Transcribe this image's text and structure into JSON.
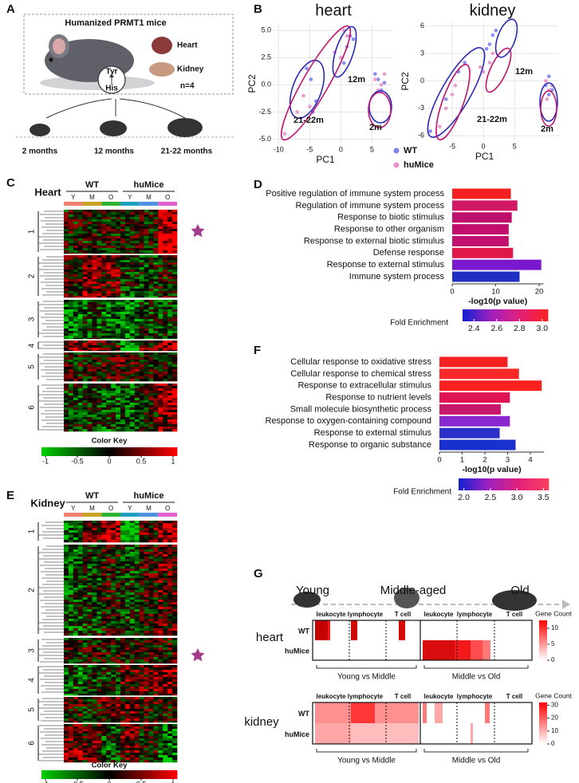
{
  "panel_labels": [
    "A",
    "B",
    "C",
    "D",
    "E",
    "F",
    "G"
  ],
  "model": {
    "title": "Humanized PRMT1 mice",
    "organs": [
      "Heart",
      "Kidney"
    ],
    "residues": [
      "Tyr",
      "His"
    ],
    "n": "n=4",
    "ages": [
      "2 months",
      "12 months",
      "21-22 months"
    ]
  },
  "chart_data": [
    {
      "type": "scatter",
      "title": "heart",
      "xlabel": "PC1",
      "ylabel": "PC2",
      "grid": true,
      "xlim": [
        -10.8,
        8.4
      ],
      "xticks": [
        -10,
        -5,
        0,
        5
      ],
      "ylim": [
        -5.4,
        5.6
      ],
      "yticks": [
        {
          "value": -5,
          "label": "-5.0"
        },
        -2.5,
        {
          "value": 0,
          "label": "0.0"
        },
        2.5,
        {
          "value": 5,
          "label": "5.0"
        }
      ],
      "annotations": [
        "12m",
        "21-22m",
        "2m"
      ],
      "series": [
        {
          "name": "WT",
          "color": "#7b83eb",
          "x": [
            -5.5,
            -4.8,
            -4,
            -4.5,
            0.5,
            1,
            1.5,
            2,
            5.5,
            6,
            6.5,
            7
          ],
          "values": [
            1.5,
            0.5,
            -1.5,
            -2.5,
            2,
            3.5,
            4.5,
            4.2,
            1,
            0.5,
            -0.5,
            0.2
          ]
        },
        {
          "name": "huMice",
          "color": "#e891c9",
          "x": [
            -9,
            -7,
            -6,
            -5,
            -1,
            0,
            1,
            0.5,
            5.5,
            6,
            6.5,
            7
          ],
          "values": [
            -4.5,
            -2.5,
            -1,
            -2,
            3,
            2.5,
            4.5,
            5,
            0.5,
            -0.5,
            0,
            1
          ]
        }
      ]
    },
    {
      "type": "scatter",
      "title": "kidney",
      "xlabel": "PC1",
      "ylabel": "PC2",
      "grid": true,
      "legend": "bottom-left",
      "xlim": [
        -9.1,
        12
      ],
      "xticks": [
        -5,
        0,
        5
      ],
      "ylim": [
        -6.5,
        6.4
      ],
      "yticks": [
        -6,
        -3,
        0,
        3,
        6
      ],
      "annotations": [
        "12m",
        "21-22m",
        "2m"
      ],
      "series": [
        {
          "name": "WT",
          "color": "#7b83eb",
          "x": [
            -8.5,
            -6,
            -4,
            -3,
            0.5,
            1.5,
            2,
            1,
            10,
            10.5,
            11,
            10.5
          ],
          "values": [
            -5.5,
            -2,
            1,
            2,
            3.5,
            5,
            5.5,
            4,
            -0.5,
            0.5,
            -1,
            -1.5
          ]
        },
        {
          "name": "huMice",
          "color": "#e891c9",
          "x": [
            -7,
            -6,
            -5,
            -4.5,
            0,
            1,
            1.5,
            -0.5,
            10,
            10.5,
            11,
            10.2
          ],
          "values": [
            -5,
            -3,
            -1.5,
            -0.5,
            1,
            2,
            3,
            1.5,
            0,
            -1,
            -0.5,
            -2
          ]
        }
      ]
    },
    {
      "type": "bar",
      "orientation": "horizontal",
      "xlabel": "-log10(p value)",
      "categories": [
        "Positive regulation of immune system process",
        "Regulation of immune system process",
        "Response to biotic stimulus",
        "Response to other organism",
        "Response to external biotic stimulus",
        "Defense response",
        "Response to external stimulus",
        "Immune system process"
      ],
      "values": [
        13.5,
        15,
        13.7,
        13,
        13,
        14,
        20.5,
        15.5
      ],
      "colors": [
        "#f52020",
        "#d01864",
        "#c0106e",
        "#c21070",
        "#c01070",
        "#e0184a",
        "#7a18d0",
        "#2030c0"
      ],
      "xlim": [
        0,
        21
      ],
      "xticks": [
        0,
        10,
        20
      ],
      "colorbar": {
        "title": "Fold Enrichment",
        "lim": [
          2.3,
          3.05
        ],
        "ticks": [
          2.4,
          2.6,
          2.8,
          {
            "value": 3,
            "label": "3.0"
          }
        ],
        "colors": [
          "#1020d0",
          "#a020c0",
          "#e0207a",
          "#ff2020"
        ]
      }
    },
    {
      "type": "bar",
      "orientation": "horizontal",
      "xlabel": "-log10(p value)",
      "categories": [
        "Cellular response to oxidative stress",
        "Cellular response to chemical stress",
        "Response to extracellular stimulus",
        "Response to nutrient levels",
        "Small molecule biosynthetic process",
        "Response to oxygen-containing compound",
        "Response to external stimulus",
        "Response to organic substance"
      ],
      "values": [
        3,
        3.5,
        4.5,
        3.1,
        2.7,
        3.1,
        2.65,
        3.35
      ],
      "colors": [
        "#f52020",
        "#f82828",
        "#ff2020",
        "#e01454",
        "#c8186c",
        "#8a28d0",
        "#2a30c8",
        "#1830d0"
      ],
      "xlim": [
        0,
        4.6
      ],
      "xticks": [
        0,
        1,
        2,
        3,
        4
      ],
      "colorbar": {
        "title": "Fold Enrichment",
        "lim": [
          1.9,
          3.6
        ],
        "ticks": [
          {
            "value": 2,
            "label": "2.0"
          },
          2.5,
          {
            "value": 3,
            "label": "3.0"
          },
          3.5
        ],
        "colors": [
          "#1020d0",
          "#a020c0",
          "#e0207a",
          "#ff4060"
        ]
      }
    }
  ],
  "heatmaps": [
    {
      "title": "Heart",
      "groups": [
        "WT",
        "huMice"
      ],
      "conditions": [
        "Y",
        "M",
        "O",
        "Y",
        "M",
        "O"
      ],
      "clusters": [
        1,
        2,
        3,
        4,
        5,
        6
      ],
      "color_key": {
        "title": "Color Key",
        "ticks": [
          -1,
          -0.5,
          0,
          0.5,
          1
        ]
      }
    },
    {
      "title": "Kidney",
      "groups": [
        "WT",
        "huMice"
      ],
      "conditions": [
        "Y",
        "M",
        "O",
        "Y",
        "M",
        "O"
      ],
      "clusters": [
        1,
        2,
        3,
        4,
        5,
        6
      ],
      "color_key": {
        "title": "Color Key",
        "ticks": [
          -1,
          -0.5,
          0,
          0.5,
          1
        ]
      }
    }
  ],
  "enrichment": {
    "stages": [
      "Young",
      "Middle-aged",
      "Old"
    ],
    "organs": [
      "heart",
      "kidney"
    ],
    "genotypes": [
      "WT",
      "huMice"
    ],
    "cell_types": [
      "leukocyte",
      "lymphocyte",
      "T cell"
    ],
    "comparisons": [
      "Young vs Middle",
      "Middle vs Old"
    ],
    "legend_title": "Gene Count",
    "scales": [
      [
        0,
        5,
        10
      ],
      [
        0,
        10,
        20,
        30
      ]
    ]
  }
}
